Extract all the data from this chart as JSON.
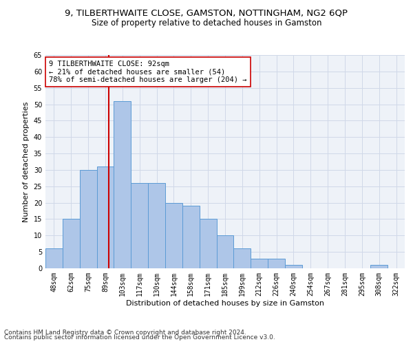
{
  "title1": "9, TILBERTHWAITE CLOSE, GAMSTON, NOTTINGHAM, NG2 6QP",
  "title2": "Size of property relative to detached houses in Gamston",
  "xlabel": "Distribution of detached houses by size in Gamston",
  "ylabel": "Number of detached properties",
  "bar_labels": [
    "48sqm",
    "62sqm",
    "75sqm",
    "89sqm",
    "103sqm",
    "117sqm",
    "130sqm",
    "144sqm",
    "158sqm",
    "171sqm",
    "185sqm",
    "199sqm",
    "212sqm",
    "226sqm",
    "240sqm",
    "254sqm",
    "267sqm",
    "281sqm",
    "295sqm",
    "308sqm",
    "322sqm"
  ],
  "bar_heights": [
    6,
    15,
    30,
    31,
    51,
    26,
    26,
    20,
    19,
    15,
    10,
    6,
    3,
    3,
    1,
    0,
    0,
    0,
    0,
    1,
    0
  ],
  "bar_color": "#aec6e8",
  "bar_edge_color": "#5b9bd5",
  "vline_color": "#cc0000",
  "annotation_text": "9 TILBERTHWAITE CLOSE: 92sqm\n← 21% of detached houses are smaller (54)\n78% of semi-detached houses are larger (204) →",
  "annotation_box_color": "#ffffff",
  "annotation_box_edge": "#cc0000",
  "ylim": [
    0,
    65
  ],
  "yticks": [
    0,
    5,
    10,
    15,
    20,
    25,
    30,
    35,
    40,
    45,
    50,
    55,
    60,
    65
  ],
  "grid_color": "#d0d8e8",
  "background_color": "#eef2f8",
  "footer1": "Contains HM Land Registry data © Crown copyright and database right 2024.",
  "footer2": "Contains public sector information licensed under the Open Government Licence v3.0.",
  "title1_fontsize": 9.5,
  "title2_fontsize": 8.5,
  "xlabel_fontsize": 8,
  "ylabel_fontsize": 8,
  "tick_fontsize": 7,
  "annotation_fontsize": 7.5,
  "footer_fontsize": 6.5
}
